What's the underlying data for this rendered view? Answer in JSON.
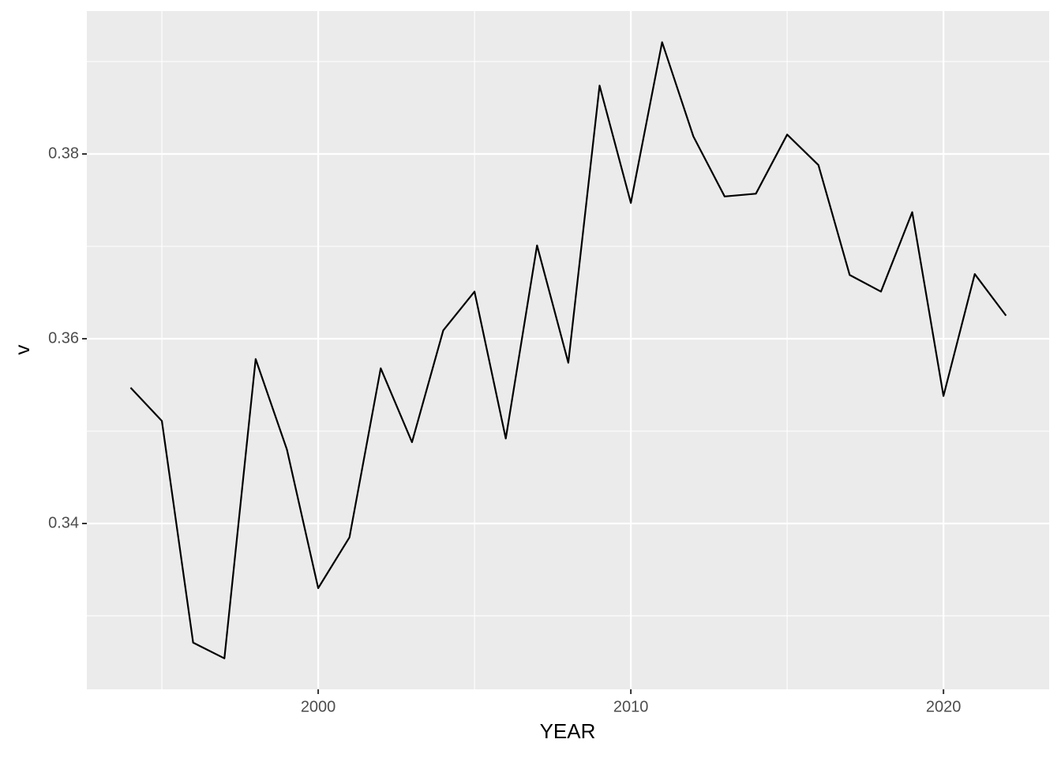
{
  "chart_data": {
    "type": "line",
    "x_label": "YEAR",
    "y_label": "v",
    "x": [
      1994,
      1995,
      1996,
      1997,
      1998,
      1999,
      2000,
      2001,
      2002,
      2003,
      2004,
      2005,
      2006,
      2007,
      2008,
      2009,
      2010,
      2011,
      2012,
      2013,
      2014,
      2015,
      2016,
      2017,
      2018,
      2019,
      2020,
      2021,
      2022
    ],
    "series": [
      {
        "color": "#000000",
        "values": [
          0.3547,
          0.3511,
          0.3271,
          0.3254,
          0.3578,
          0.348,
          0.333,
          0.3385,
          0.3568,
          0.3488,
          0.3609,
          0.3651,
          0.3492,
          0.3701,
          0.3574,
          0.3874,
          0.3747,
          0.3921,
          0.3819,
          0.3754,
          0.3757,
          0.3821,
          0.3788,
          0.3669,
          0.3651,
          0.3737,
          0.3538,
          0.367,
          0.3625
        ]
      }
    ],
    "xlim": [
      1992.6,
      2023.38
    ],
    "xticks": [
      2000,
      2010,
      2020
    ],
    "xminor_ticks": [
      1995,
      2005,
      2015
    ],
    "ylim": [
      0.32205,
      0.39547
    ],
    "yticks": [
      0.34,
      0.36,
      0.38
    ],
    "yminor_ticks": [
      0.33,
      0.35,
      0.37,
      0.39
    ],
    "grid": true,
    "panel_color": "#ebebeb",
    "grid_color": "#ffffff"
  }
}
